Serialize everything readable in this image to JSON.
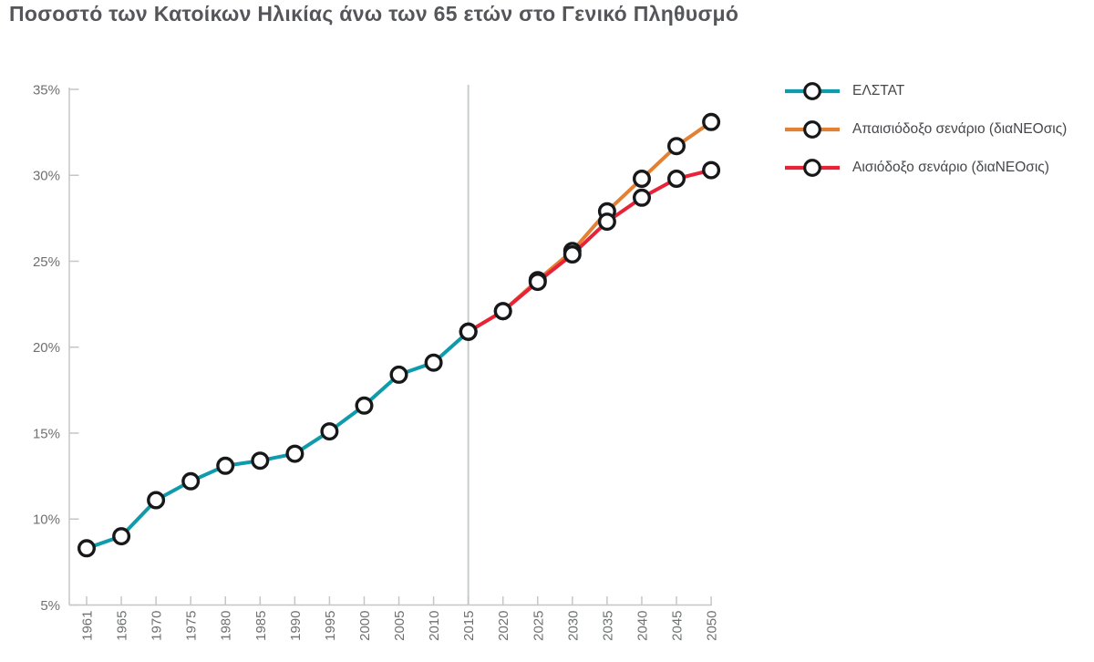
{
  "title": "Ποσοστό των Κατοίκων Ηλικίας άνω των 65 ετών στο Γενικό Πληθυσμό",
  "colors": {
    "elstat": "#0f9bab",
    "pessimistic": "#e28033",
    "optimistic": "#e82338",
    "marker_stroke": "#17181a",
    "axis": "#c5c6c7",
    "reference_line": "#cbcccd",
    "tick_text": "#6e7072",
    "title_text": "#54565a"
  },
  "chart_data": {
    "type": "line",
    "categories": [
      "1961",
      "1965",
      "1970",
      "1975",
      "1980",
      "1985",
      "1990",
      "1995",
      "2000",
      "2005",
      "2010",
      "2015",
      "2020",
      "2025",
      "2030",
      "2035",
      "2040",
      "2045",
      "2050"
    ],
    "series": [
      {
        "name": "ΕΛΣΤΑΤ",
        "color": "#0f9bab",
        "values": [
          8.3,
          9.0,
          11.1,
          12.2,
          13.1,
          13.4,
          13.8,
          15.1,
          16.6,
          18.4,
          19.1,
          20.9,
          null,
          null,
          null,
          null,
          null,
          null,
          null
        ]
      },
      {
        "name": "Απαισιόδοξο σενάριο (διαΝΕΟσις)",
        "color": "#e28033",
        "values": [
          null,
          null,
          null,
          null,
          null,
          null,
          null,
          null,
          null,
          null,
          null,
          20.9,
          22.1,
          23.9,
          25.6,
          27.9,
          29.8,
          31.7,
          33.1
        ]
      },
      {
        "name": "Αισιόδοξο σενάριο (διαΝΕΟσις)",
        "color": "#e82338",
        "values": [
          null,
          null,
          null,
          null,
          null,
          null,
          null,
          null,
          null,
          null,
          null,
          20.9,
          22.1,
          23.8,
          25.4,
          27.3,
          28.7,
          29.8,
          30.3
        ]
      }
    ],
    "ylim": [
      5,
      35
    ],
    "yticks": [
      5,
      10,
      15,
      20,
      25,
      30,
      35
    ],
    "ytick_labels": [
      "5%",
      "10%",
      "15%",
      "20%",
      "25%",
      "30%",
      "35%"
    ],
    "reference_line_x": "2015",
    "grid": false,
    "legend_position": "right"
  }
}
